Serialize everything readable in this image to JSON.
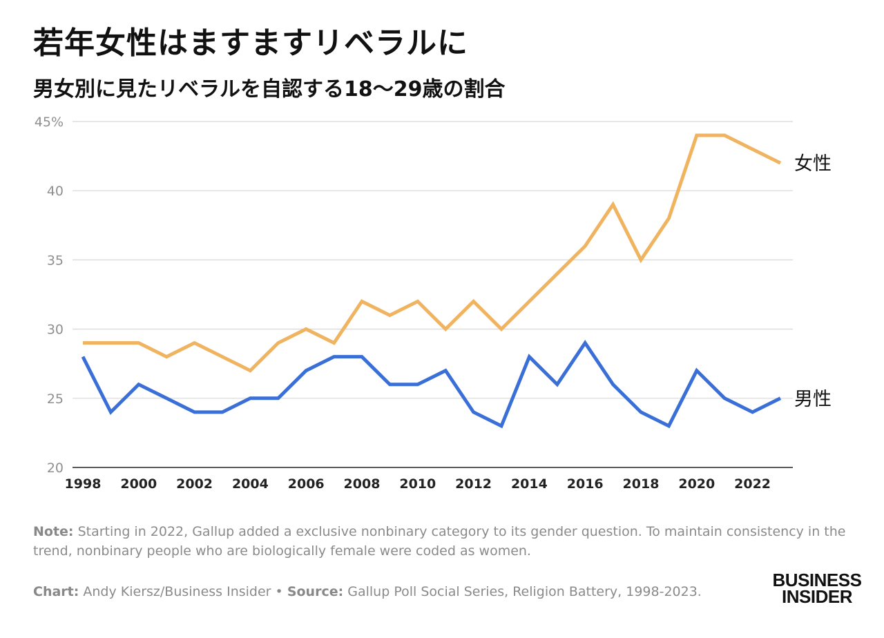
{
  "header": {
    "title": "若年女性はますますリベラルに",
    "subtitle": "男女別に見たリベラルを自認する18〜29歳の割合"
  },
  "footer": {
    "note_label": "Note:",
    "note_text": "Starting in 2022, Gallup added a exclusive nonbinary category to its gender question. To maintain consistency in the trend, nonbinary people who are biologically female were coded as women.",
    "chart_label": "Chart:",
    "chart_text": "Andy Kiersz/Business Insider",
    "bullet": "•",
    "source_label": "Source:",
    "source_text": "Gallup Poll Social Series, Religion Battery, 1998-2023.",
    "logo_line1": "BUSINESS",
    "logo_line2": "INSIDER"
  },
  "chart_data": {
    "type": "line",
    "title": "",
    "xlabel": "",
    "ylabel": "",
    "x": [
      1998,
      1999,
      2000,
      2001,
      2002,
      2003,
      2004,
      2005,
      2006,
      2007,
      2008,
      2009,
      2010,
      2011,
      2012,
      2013,
      2014,
      2015,
      2016,
      2017,
      2018,
      2019,
      2020,
      2021,
      2022,
      2023
    ],
    "xticks": [
      1998,
      2000,
      2002,
      2004,
      2006,
      2008,
      2010,
      2012,
      2014,
      2016,
      2018,
      2020,
      2022
    ],
    "ylim": [
      20,
      45
    ],
    "yticks": [
      20,
      25,
      30,
      35,
      40,
      45
    ],
    "ytick_labels": [
      "20",
      "25",
      "30",
      "35",
      "40",
      "45%"
    ],
    "grid": true,
    "series": [
      {
        "name": "女性",
        "color": "#F0B35F",
        "values": [
          29,
          29,
          29,
          28,
          29,
          28,
          27,
          29,
          30,
          29,
          32,
          31,
          32,
          30,
          32,
          30,
          32,
          34,
          36,
          39,
          35,
          38,
          44,
          44,
          43,
          42
        ]
      },
      {
        "name": "男性",
        "color": "#3A6FD8",
        "values": [
          28,
          24,
          26,
          25,
          24,
          24,
          25,
          25,
          27,
          28,
          28,
          26,
          26,
          27,
          24,
          23,
          28,
          26,
          29,
          26,
          24,
          23,
          27,
          25,
          24,
          25
        ]
      }
    ]
  }
}
